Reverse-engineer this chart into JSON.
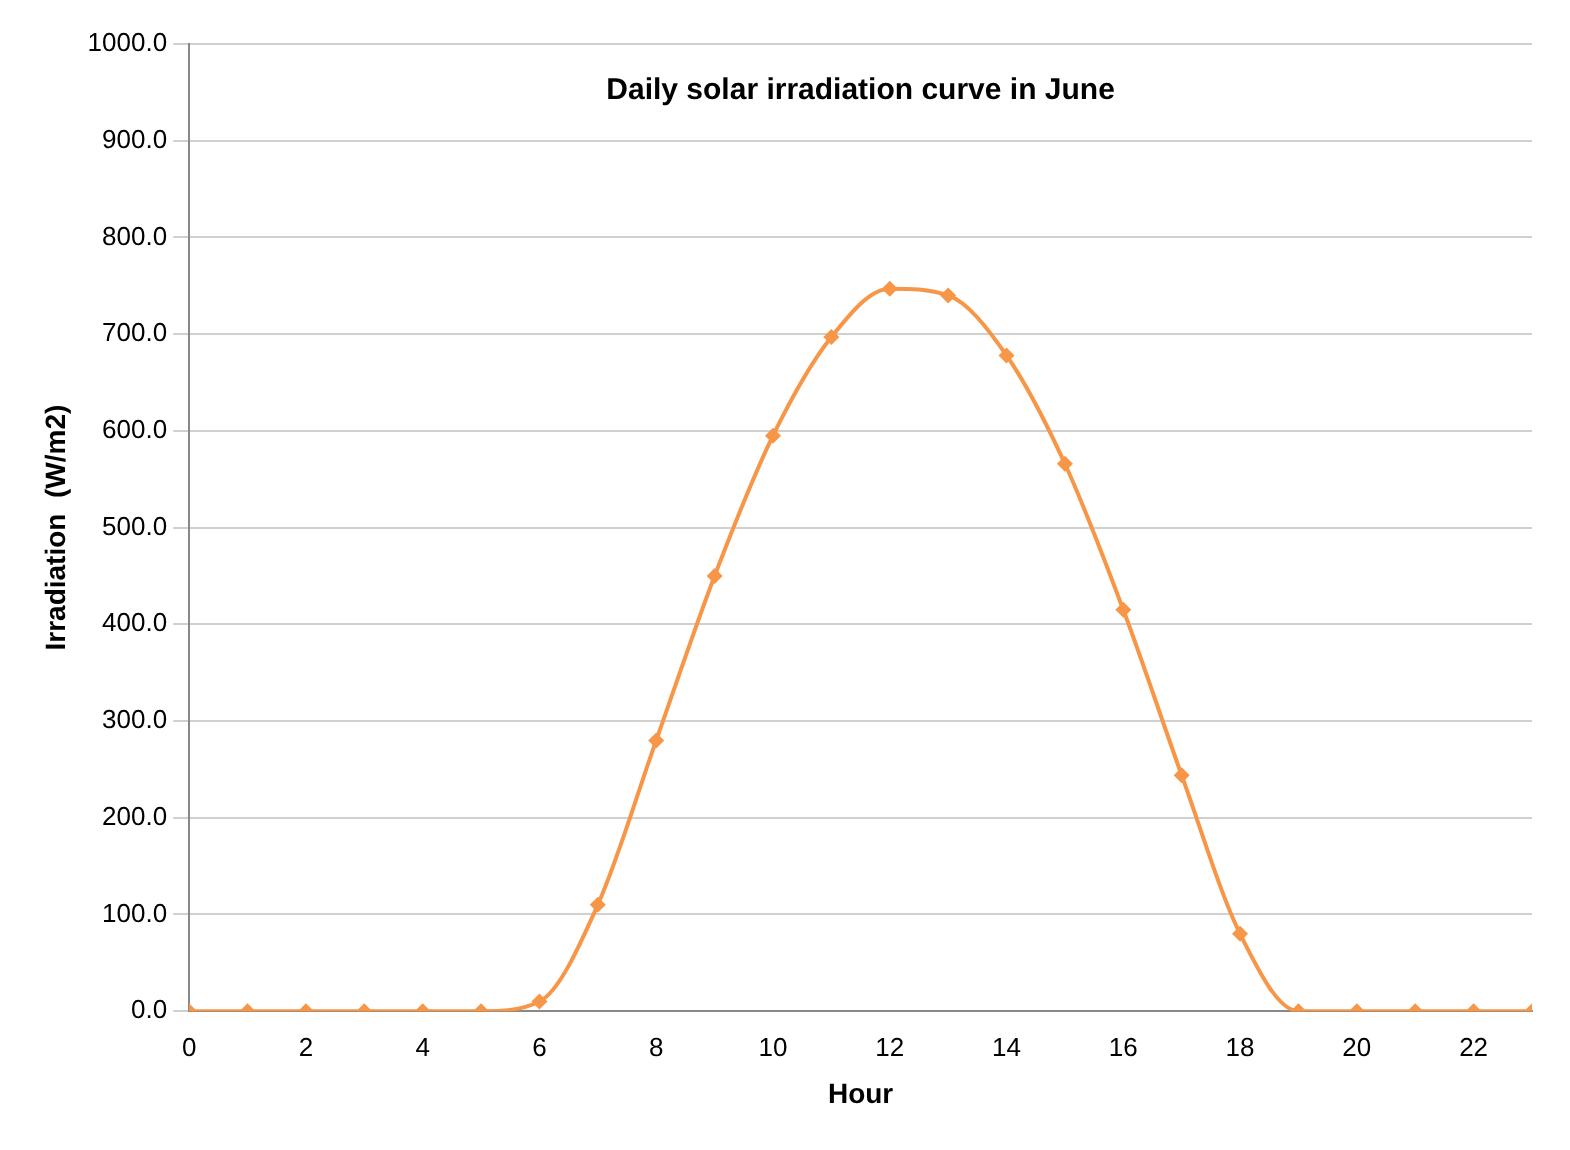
{
  "chart_data": {
    "type": "line",
    "title": "Daily solar irradiation curve in June",
    "xlabel": "Hour",
    "ylabel": "Irradiation  (W/m2)",
    "x": [
      0,
      1,
      2,
      3,
      4,
      5,
      6,
      7,
      8,
      9,
      10,
      11,
      12,
      13,
      14,
      15,
      16,
      17,
      18,
      19,
      20,
      21,
      22,
      23
    ],
    "series": [
      {
        "color": "#f79646",
        "values": [
          0,
          0,
          0,
          0,
          0,
          0,
          10,
          110,
          280,
          450,
          595,
          697,
          747,
          740,
          678,
          566,
          415,
          244,
          80,
          0,
          0,
          0,
          0,
          0
        ]
      }
    ],
    "xlim": [
      0,
      23
    ],
    "xticks": [
      0,
      2,
      4,
      6,
      8,
      10,
      12,
      14,
      16,
      18,
      20,
      22
    ],
    "ylim": [
      0,
      1000
    ],
    "yticks": [
      {
        "value": 0,
        "label": "0.0"
      },
      {
        "value": 100,
        "label": "100.0"
      },
      {
        "value": 200,
        "label": "200.0"
      },
      {
        "value": 300,
        "label": "300.0"
      },
      {
        "value": 400,
        "label": "400.0"
      },
      {
        "value": 500,
        "label": "500.0"
      },
      {
        "value": 600,
        "label": "600.0"
      },
      {
        "value": 700,
        "label": "700.0"
      },
      {
        "value": 800,
        "label": "800.0"
      },
      {
        "value": 900,
        "label": "900.0"
      },
      {
        "value": 1000,
        "label": "1000.0"
      }
    ],
    "grid": "y",
    "marker": "diamond",
    "line_style": "solid",
    "legend": false
  }
}
